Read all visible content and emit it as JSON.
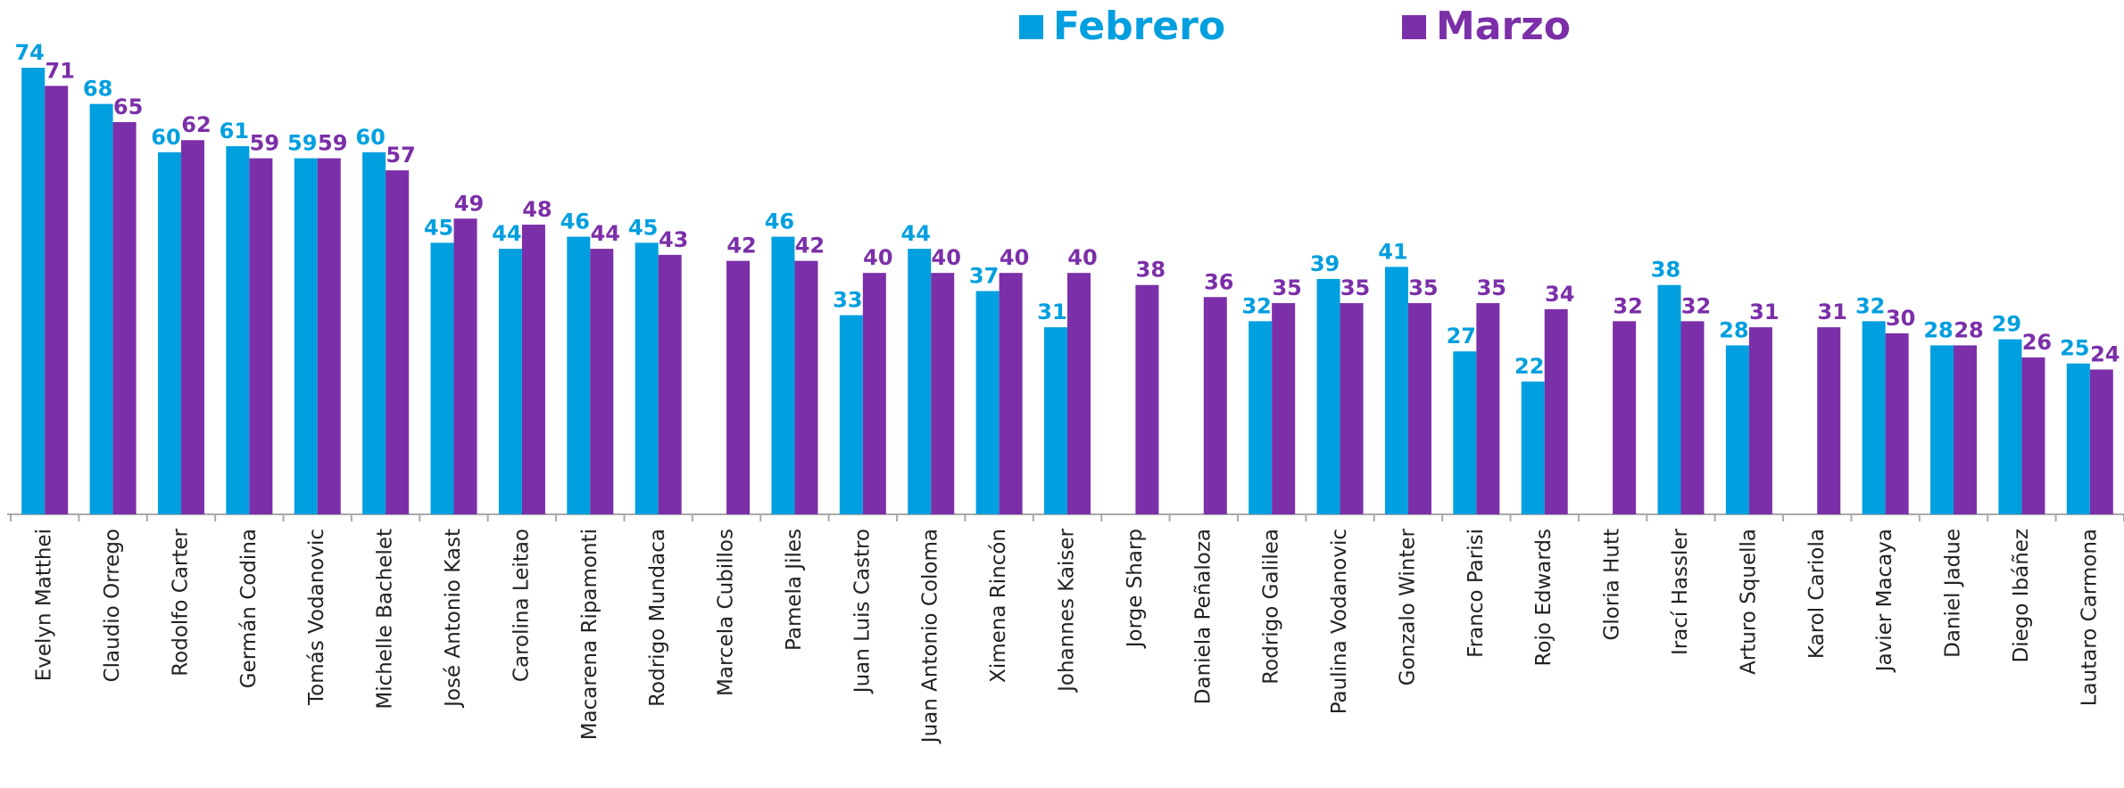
{
  "chart_data": {
    "type": "bar",
    "categories": [
      "Evelyn Matthei",
      "Claudio Orrego",
      "Rodolfo Carter",
      "Germán Codina",
      "Tomás Vodanovic",
      "Michelle Bachelet",
      "José Antonio Kast",
      "Carolina Leitao",
      "Macarena Ripamonti",
      "Rodrigo Mundaca",
      "Marcela Cubillos",
      "Pamela Jiles",
      "Juan Luis Castro",
      "Juan Antonio Coloma",
      "Ximena Rincón",
      "Johannes Kaiser",
      "Jorge Sharp",
      "Daniela Peñaloza",
      "Rodrigo Galilea",
      "Paulina Vodanovic",
      "Gonzalo Winter",
      "Franco Parisi",
      "Rojo Edwards",
      "Gloria Hutt",
      "Irací Hassler",
      "Arturo Squella",
      "Karol Cariola",
      "Javier Macaya",
      "Daniel Jadue",
      "Diego Ibáñez",
      "Lautaro Carmona"
    ],
    "series": [
      {
        "name": "Febrero",
        "color": "#009fdf",
        "values": [
          74,
          68,
          60,
          61,
          59,
          60,
          45,
          44,
          46,
          45,
          null,
          46,
          33,
          44,
          37,
          31,
          null,
          null,
          32,
          39,
          41,
          27,
          22,
          null,
          38,
          28,
          null,
          32,
          28,
          29,
          25
        ]
      },
      {
        "name": "Marzo",
        "color": "#7b2fa8",
        "values": [
          71,
          65,
          62,
          59,
          59,
          57,
          49,
          48,
          44,
          43,
          42,
          42,
          40,
          40,
          40,
          40,
          38,
          36,
          35,
          35,
          35,
          35,
          34,
          32,
          32,
          31,
          31,
          30,
          28,
          26,
          24
        ]
      }
    ]
  }
}
